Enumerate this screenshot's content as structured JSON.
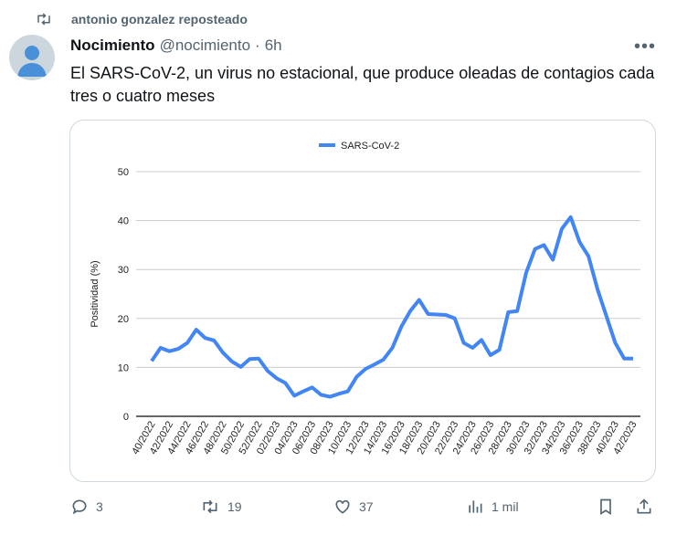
{
  "repost": {
    "text": "antonio gonzalez reposteado"
  },
  "tweet": {
    "name": "Nocimiento",
    "handle": "@nocimiento",
    "sep": "·",
    "time": "6h",
    "text": "El SARS-CoV-2, un virus no estacional, que produce oleadas de contagios cada tres o cuatro meses"
  },
  "actions": {
    "replies": "3",
    "reposts": "19",
    "likes": "37",
    "views": "1 mil"
  },
  "colors": {
    "line": "#4285f4"
  },
  "chart_data": {
    "type": "line",
    "title": "",
    "xlabel": "",
    "ylabel": "Positividad (%)",
    "ylim": [
      0,
      50
    ],
    "yticks": [
      0,
      10,
      20,
      30,
      40,
      50
    ],
    "grid": true,
    "legend": "top-center",
    "series": [
      {
        "name": "SARS-CoV-2",
        "values": [
          11.3,
          14,
          13.3,
          13.8,
          15,
          17.7,
          16,
          15.5,
          13,
          11.2,
          10.1,
          11.7,
          11.8,
          9.3,
          7.8,
          6.8,
          4.2,
          5.1,
          5.9,
          4.4,
          4.0,
          4.6,
          5.1,
          8.1,
          9.7,
          10.6,
          11.6,
          14,
          18.3,
          21.5,
          23.8,
          20.9,
          20.8,
          20.7,
          20,
          15,
          14,
          15.6,
          12.5,
          13.6,
          21.3,
          21.5,
          29.3,
          34.2,
          35,
          32,
          38.3,
          40.7,
          35.6,
          32.7,
          26,
          20.5,
          15,
          11.8,
          11.8
        ]
      }
    ],
    "xtick_labels": [
      "40/2022",
      "42/2022",
      "44/2022",
      "46/2022",
      "48/2022",
      "50/2022",
      "52/2022",
      "02/2023",
      "04/2023",
      "06/2023",
      "08/2023",
      "10/2023",
      "12/2023",
      "14/2023",
      "16/2023",
      "18/2023",
      "20/2023",
      "22/2023",
      "24/2023",
      "26/2023",
      "28/2023",
      "30/2023",
      "32/2023",
      "34/2023",
      "36/2023",
      "38/2023",
      "40/2023",
      "42/2023"
    ]
  }
}
